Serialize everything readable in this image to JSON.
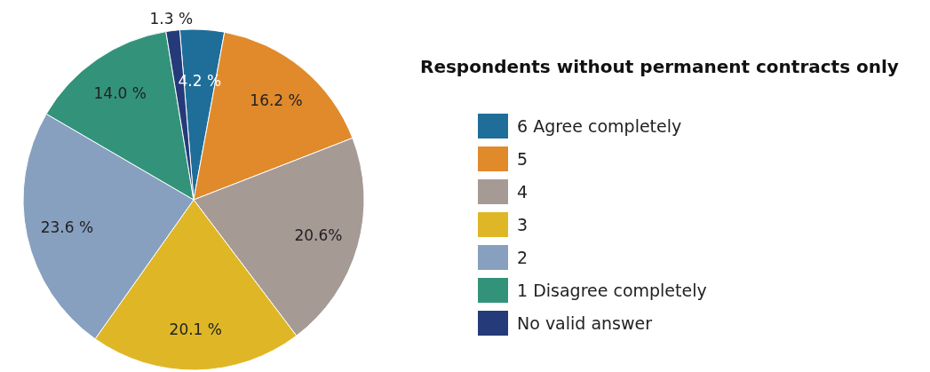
{
  "chart_data": {
    "type": "pie",
    "title": "Respondents without permanent contracts only",
    "categories": [
      "6  Agree completely",
      "5",
      "4",
      "3",
      "2",
      "1 Disagree completely",
      "No valid answer"
    ],
    "values": [
      4.2,
      16.2,
      20.6,
      20.1,
      23.6,
      14.0,
      1.3
    ],
    "value_labels": [
      "4.2 %",
      "16.2 %",
      "20.6%",
      "20.1 %",
      "23.6 %",
      "14.0 %",
      "1.3 %"
    ],
    "colors": [
      "#1f6e99",
      "#e08a2c",
      "#a69a95",
      "#dfb726",
      "#87a0bf",
      "#33937a",
      "#253a78"
    ],
    "legend": "right"
  }
}
